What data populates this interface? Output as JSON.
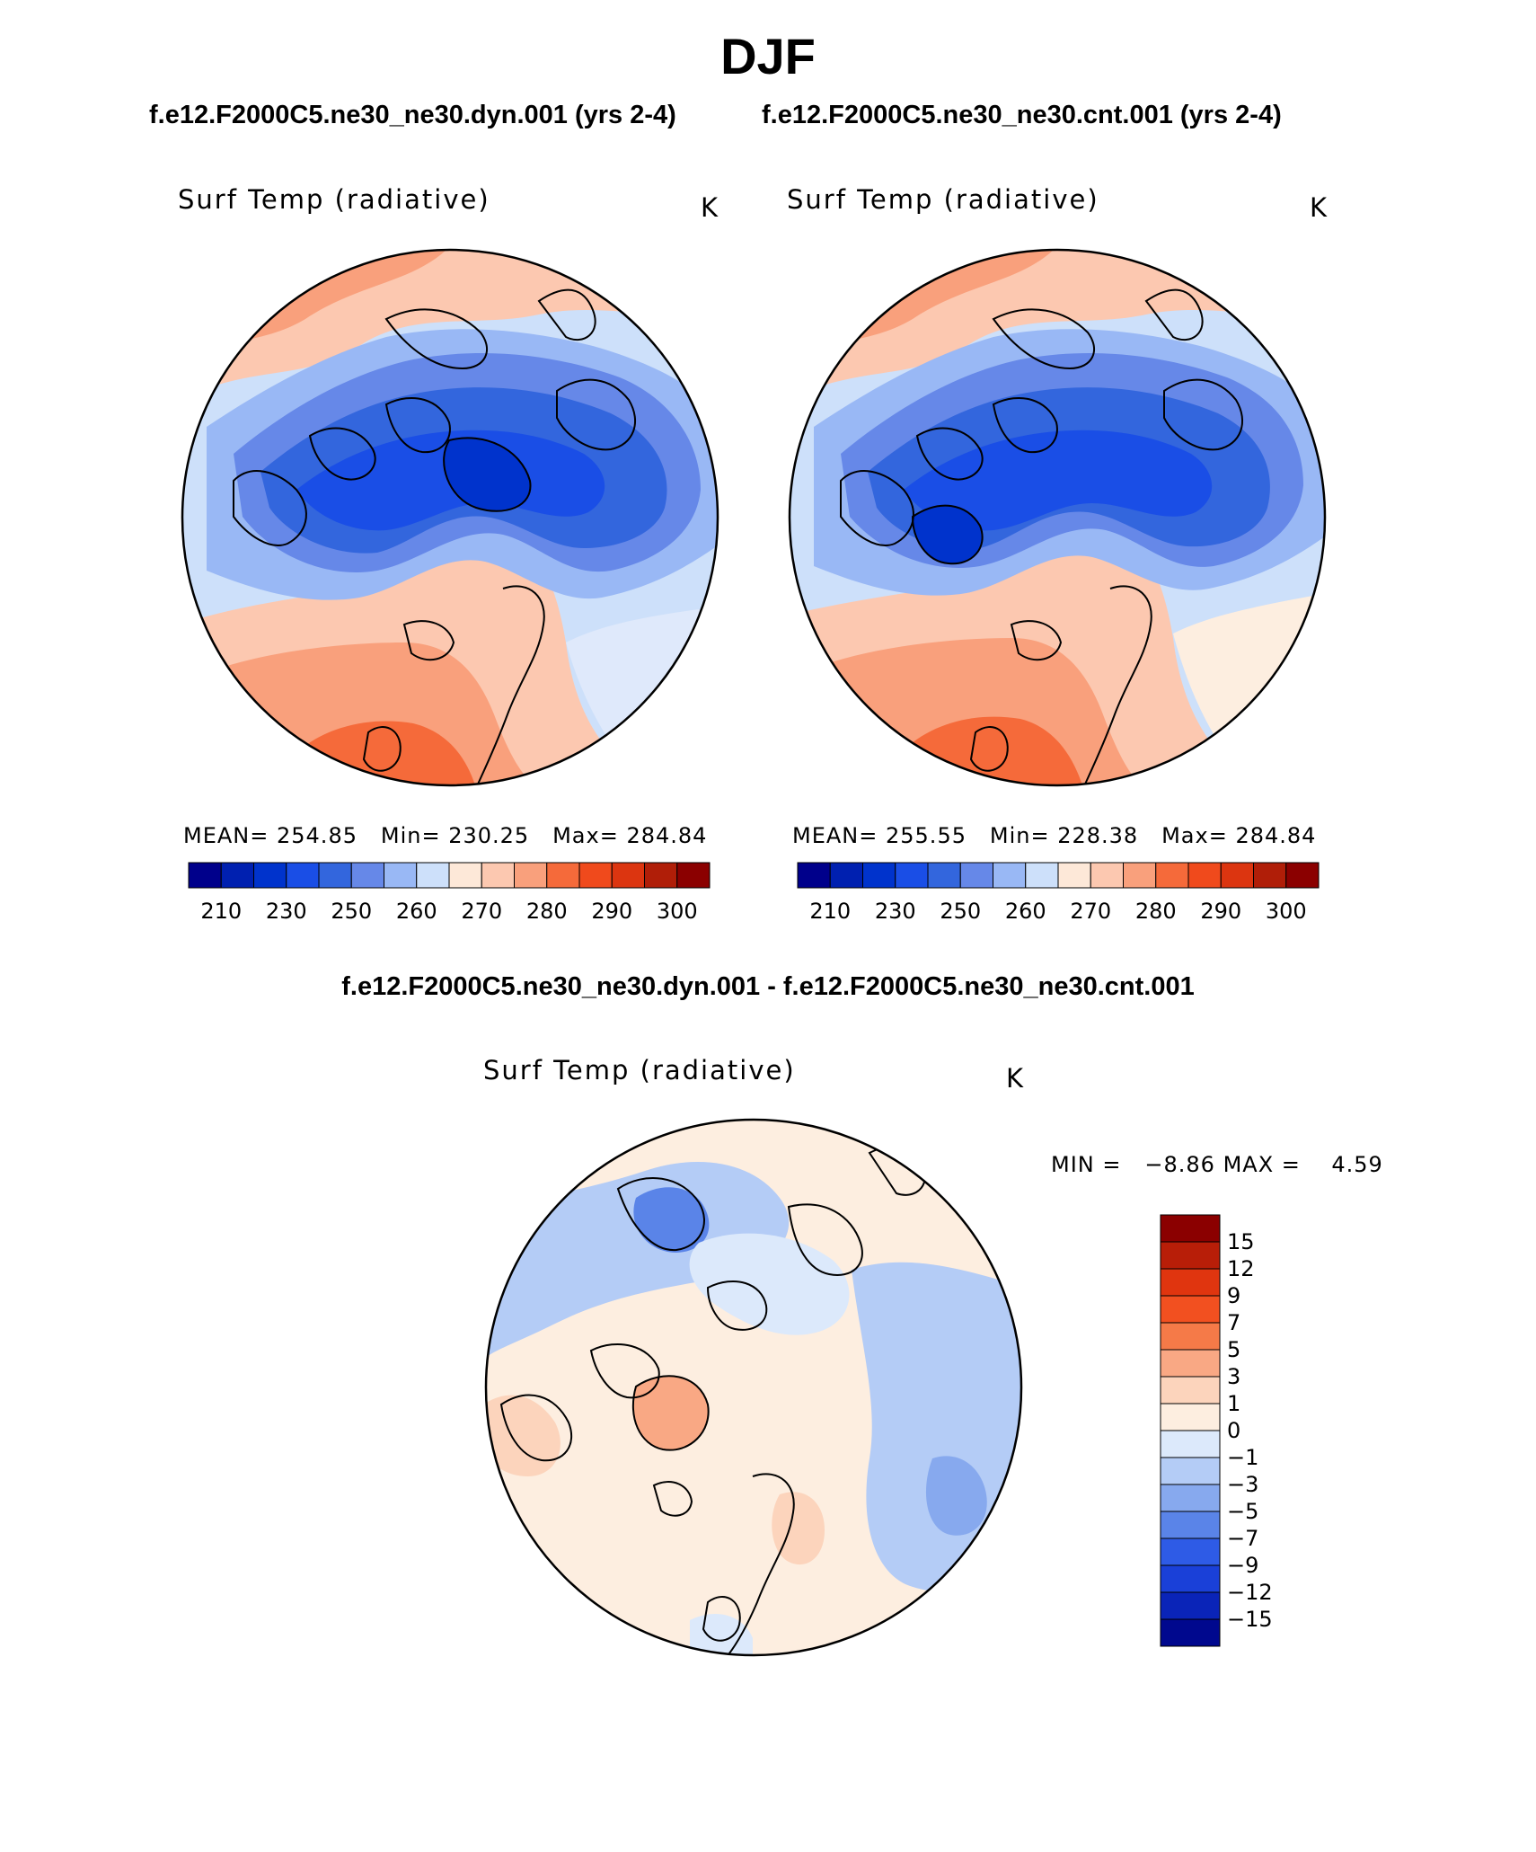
{
  "season": "DJF",
  "header": {
    "case_dyn": "f.e12.F2000C5.ne30_ne30.dyn.001 (yrs 2-4)",
    "case_cnt": "f.e12.F2000C5.ne30_ne30.cnt.001 (yrs 2-4)"
  },
  "panels": [
    {
      "variable": "Surf Temp (radiative)",
      "unit": "K",
      "stats": {
        "mean_label": "MEAN=",
        "mean": "254.85",
        "min_label": "Min=",
        "min": "230.25",
        "max_label": "Max=",
        "max": "284.84"
      }
    },
    {
      "variable": "Surf Temp (radiative)",
      "unit": "K",
      "stats": {
        "mean_label": "MEAN=",
        "mean": "255.55",
        "min_label": "Min=",
        "min": "228.38",
        "max_label": "Max=",
        "max": "284.84"
      }
    }
  ],
  "diff": {
    "title": "f.e12.F2000C5.ne30_ne30.dyn.001 - f.e12.F2000C5.ne30_ne30.cnt.001",
    "variable": "Surf Temp (radiative)",
    "unit": "K",
    "min_label": "MIN =",
    "min": "−8.86",
    "max_label": "MAX =",
    "max": "4.59"
  },
  "colorbar_abs": {
    "colors": [
      "#00008b",
      "#0020b0",
      "#0033cc",
      "#1a4ee6",
      "#3366dd",
      "#6688e8",
      "#99b8f5",
      "#cde0fa",
      "#fde8d8",
      "#fcc8b0",
      "#f9a07c",
      "#f56a3a",
      "#f04a1c",
      "#dc3510",
      "#b01e08",
      "#8b0000"
    ],
    "labels": [
      "210",
      "230",
      "250",
      "260",
      "270",
      "280",
      "290",
      "300"
    ]
  },
  "colorbar_diff": {
    "colors": [
      "#8b0000",
      "#b81e08",
      "#e0350f",
      "#f25020",
      "#f57a48",
      "#f9a884",
      "#fcd4bc",
      "#fdeee0",
      "#dce9fb",
      "#b4ccf6",
      "#87a9ee",
      "#5a84e8",
      "#2e5be6",
      "#1a40d8",
      "#0a24b8",
      "#00088e"
    ],
    "labels": [
      "15",
      "12",
      "9",
      "7",
      "5",
      "3",
      "1",
      "0",
      "−1",
      "−3",
      "−5",
      "−7",
      "−9",
      "−12",
      "−15"
    ]
  },
  "chart_data": [
    {
      "type": "heatmap",
      "title": "Surf Temp (radiative)",
      "case": "f.e12.F2000C5.ne30_ne30.dyn.001 (yrs 2-4)",
      "projection": "north-polar-stereographic",
      "units": "K",
      "mean": 254.85,
      "min": 230.25,
      "max": 284.84,
      "contour_levels": [
        210,
        220,
        230,
        240,
        250,
        255,
        260,
        265,
        270,
        275,
        280,
        285,
        290,
        295,
        300
      ]
    },
    {
      "type": "heatmap",
      "title": "Surf Temp (radiative)",
      "case": "f.e12.F2000C5.ne30_ne30.cnt.001 (yrs 2-4)",
      "projection": "north-polar-stereographic",
      "units": "K",
      "mean": 255.55,
      "min": 228.38,
      "max": 284.84,
      "contour_levels": [
        210,
        220,
        230,
        240,
        250,
        255,
        260,
        265,
        270,
        275,
        280,
        285,
        290,
        295,
        300
      ]
    },
    {
      "type": "heatmap",
      "title": "Surf Temp (radiative)",
      "case": "f.e12.F2000C5.ne30_ne30.dyn.001 - f.e12.F2000C5.ne30_ne30.cnt.001",
      "projection": "north-polar-stereographic",
      "units": "K",
      "min": -8.86,
      "max": 4.59,
      "contour_levels": [
        -15,
        -12,
        -9,
        -7,
        -5,
        -3,
        -1,
        0,
        1,
        3,
        5,
        7,
        9,
        12,
        15
      ]
    }
  ]
}
